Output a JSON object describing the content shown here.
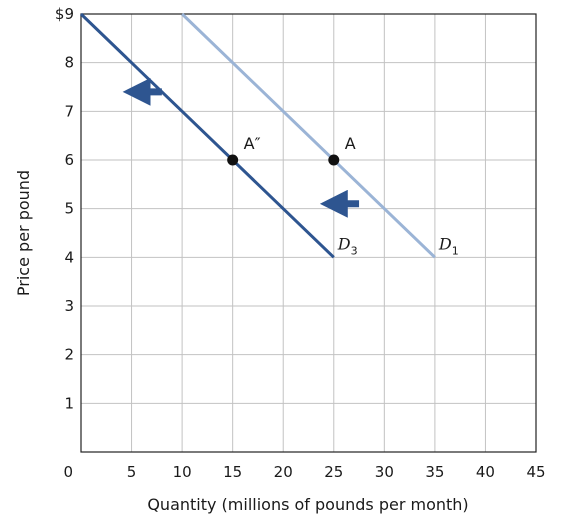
{
  "chart_data": {
    "type": "line",
    "xlabel": "Quantity (millions of pounds per month)",
    "ylabel": "Price per pound",
    "xlim": [
      0,
      45
    ],
    "ylim": [
      0,
      9
    ],
    "x_ticks": [
      {
        "value": 0,
        "label": "0"
      },
      {
        "value": 5,
        "label": "5"
      },
      {
        "value": 10,
        "label": "10"
      },
      {
        "value": 15,
        "label": "15"
      },
      {
        "value": 20,
        "label": "20"
      },
      {
        "value": 25,
        "label": "25"
      },
      {
        "value": 30,
        "label": "30"
      },
      {
        "value": 35,
        "label": "35"
      },
      {
        "value": 40,
        "label": "40"
      },
      {
        "value": 45,
        "label": "45"
      }
    ],
    "y_ticks": [
      {
        "value": 1,
        "label": "1"
      },
      {
        "value": 2,
        "label": "2"
      },
      {
        "value": 3,
        "label": "3"
      },
      {
        "value": 4,
        "label": "4"
      },
      {
        "value": 5,
        "label": "5"
      },
      {
        "value": 6,
        "label": "6"
      },
      {
        "value": 7,
        "label": "7"
      },
      {
        "value": 8,
        "label": "8"
      },
      {
        "value": 9,
        "label": "$9"
      }
    ],
    "grid": true,
    "series": [
      {
        "key": "d1",
        "label_main": "D",
        "label_sub": "1",
        "color": "#9bb4d6",
        "points": [
          {
            "x": 10,
            "y": 9
          },
          {
            "x": 35,
            "y": 4
          }
        ]
      },
      {
        "key": "d3",
        "label_main": "D",
        "label_sub": "3",
        "color": "#2e5590",
        "points": [
          {
            "x": 0,
            "y": 9
          },
          {
            "x": 25,
            "y": 4
          }
        ]
      }
    ],
    "points": [
      {
        "key": "A",
        "label": "A",
        "x": 25,
        "y": 6
      },
      {
        "key": "A2",
        "label": "A″",
        "x": 15,
        "y": 6
      }
    ],
    "arrows": [
      {
        "direction": "left",
        "from": {
          "x": 8,
          "y": 7.4
        },
        "to": {
          "x": 5.5,
          "y": 7.4
        },
        "color": "#2e5590"
      },
      {
        "direction": "left",
        "from": {
          "x": 27.5,
          "y": 5.1
        },
        "to": {
          "x": 25,
          "y": 5.1
        },
        "color": "#2e5590"
      }
    ]
  }
}
